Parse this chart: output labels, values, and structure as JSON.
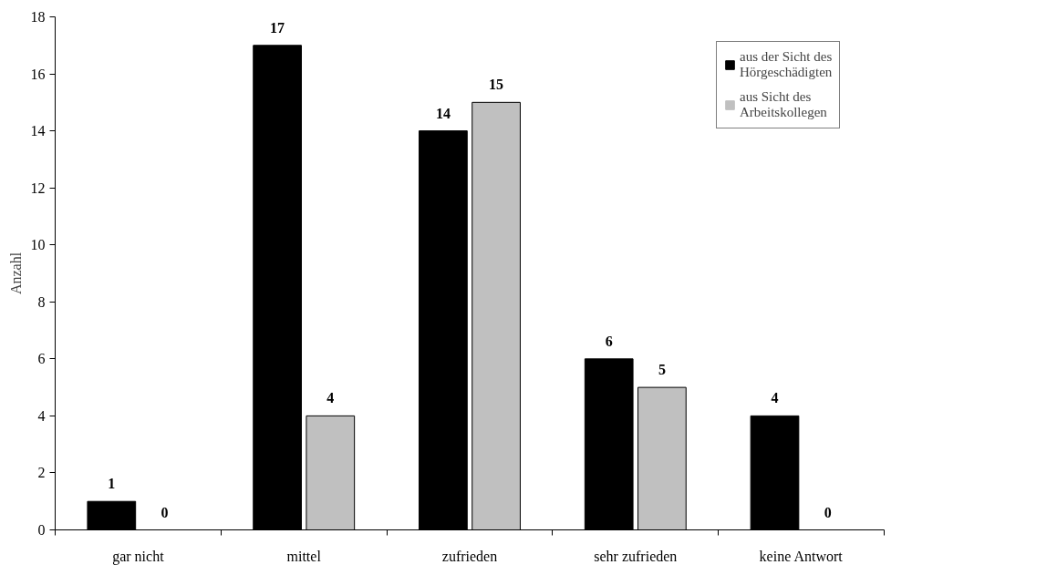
{
  "chart_data": {
    "type": "bar",
    "ylabel": "Anzahl",
    "categories": [
      "gar nicht",
      "mittel",
      "zufrieden",
      "sehr zufrieden",
      "keine Antwort"
    ],
    "series": [
      {
        "name": "aus der Sicht des Hörgeschädigten",
        "color": "#000000",
        "values": [
          1,
          17,
          14,
          6,
          4
        ]
      },
      {
        "name": "aus Sicht des Arbeitskollegen",
        "color": "#c0c0c0",
        "values": [
          0,
          4,
          15,
          5,
          0
        ]
      }
    ],
    "ylim": [
      0,
      18
    ],
    "yticks": [
      0,
      2,
      4,
      6,
      8,
      10,
      12,
      14,
      16,
      18
    ],
    "grid": false,
    "legend": "top right",
    "data_labels": true
  }
}
